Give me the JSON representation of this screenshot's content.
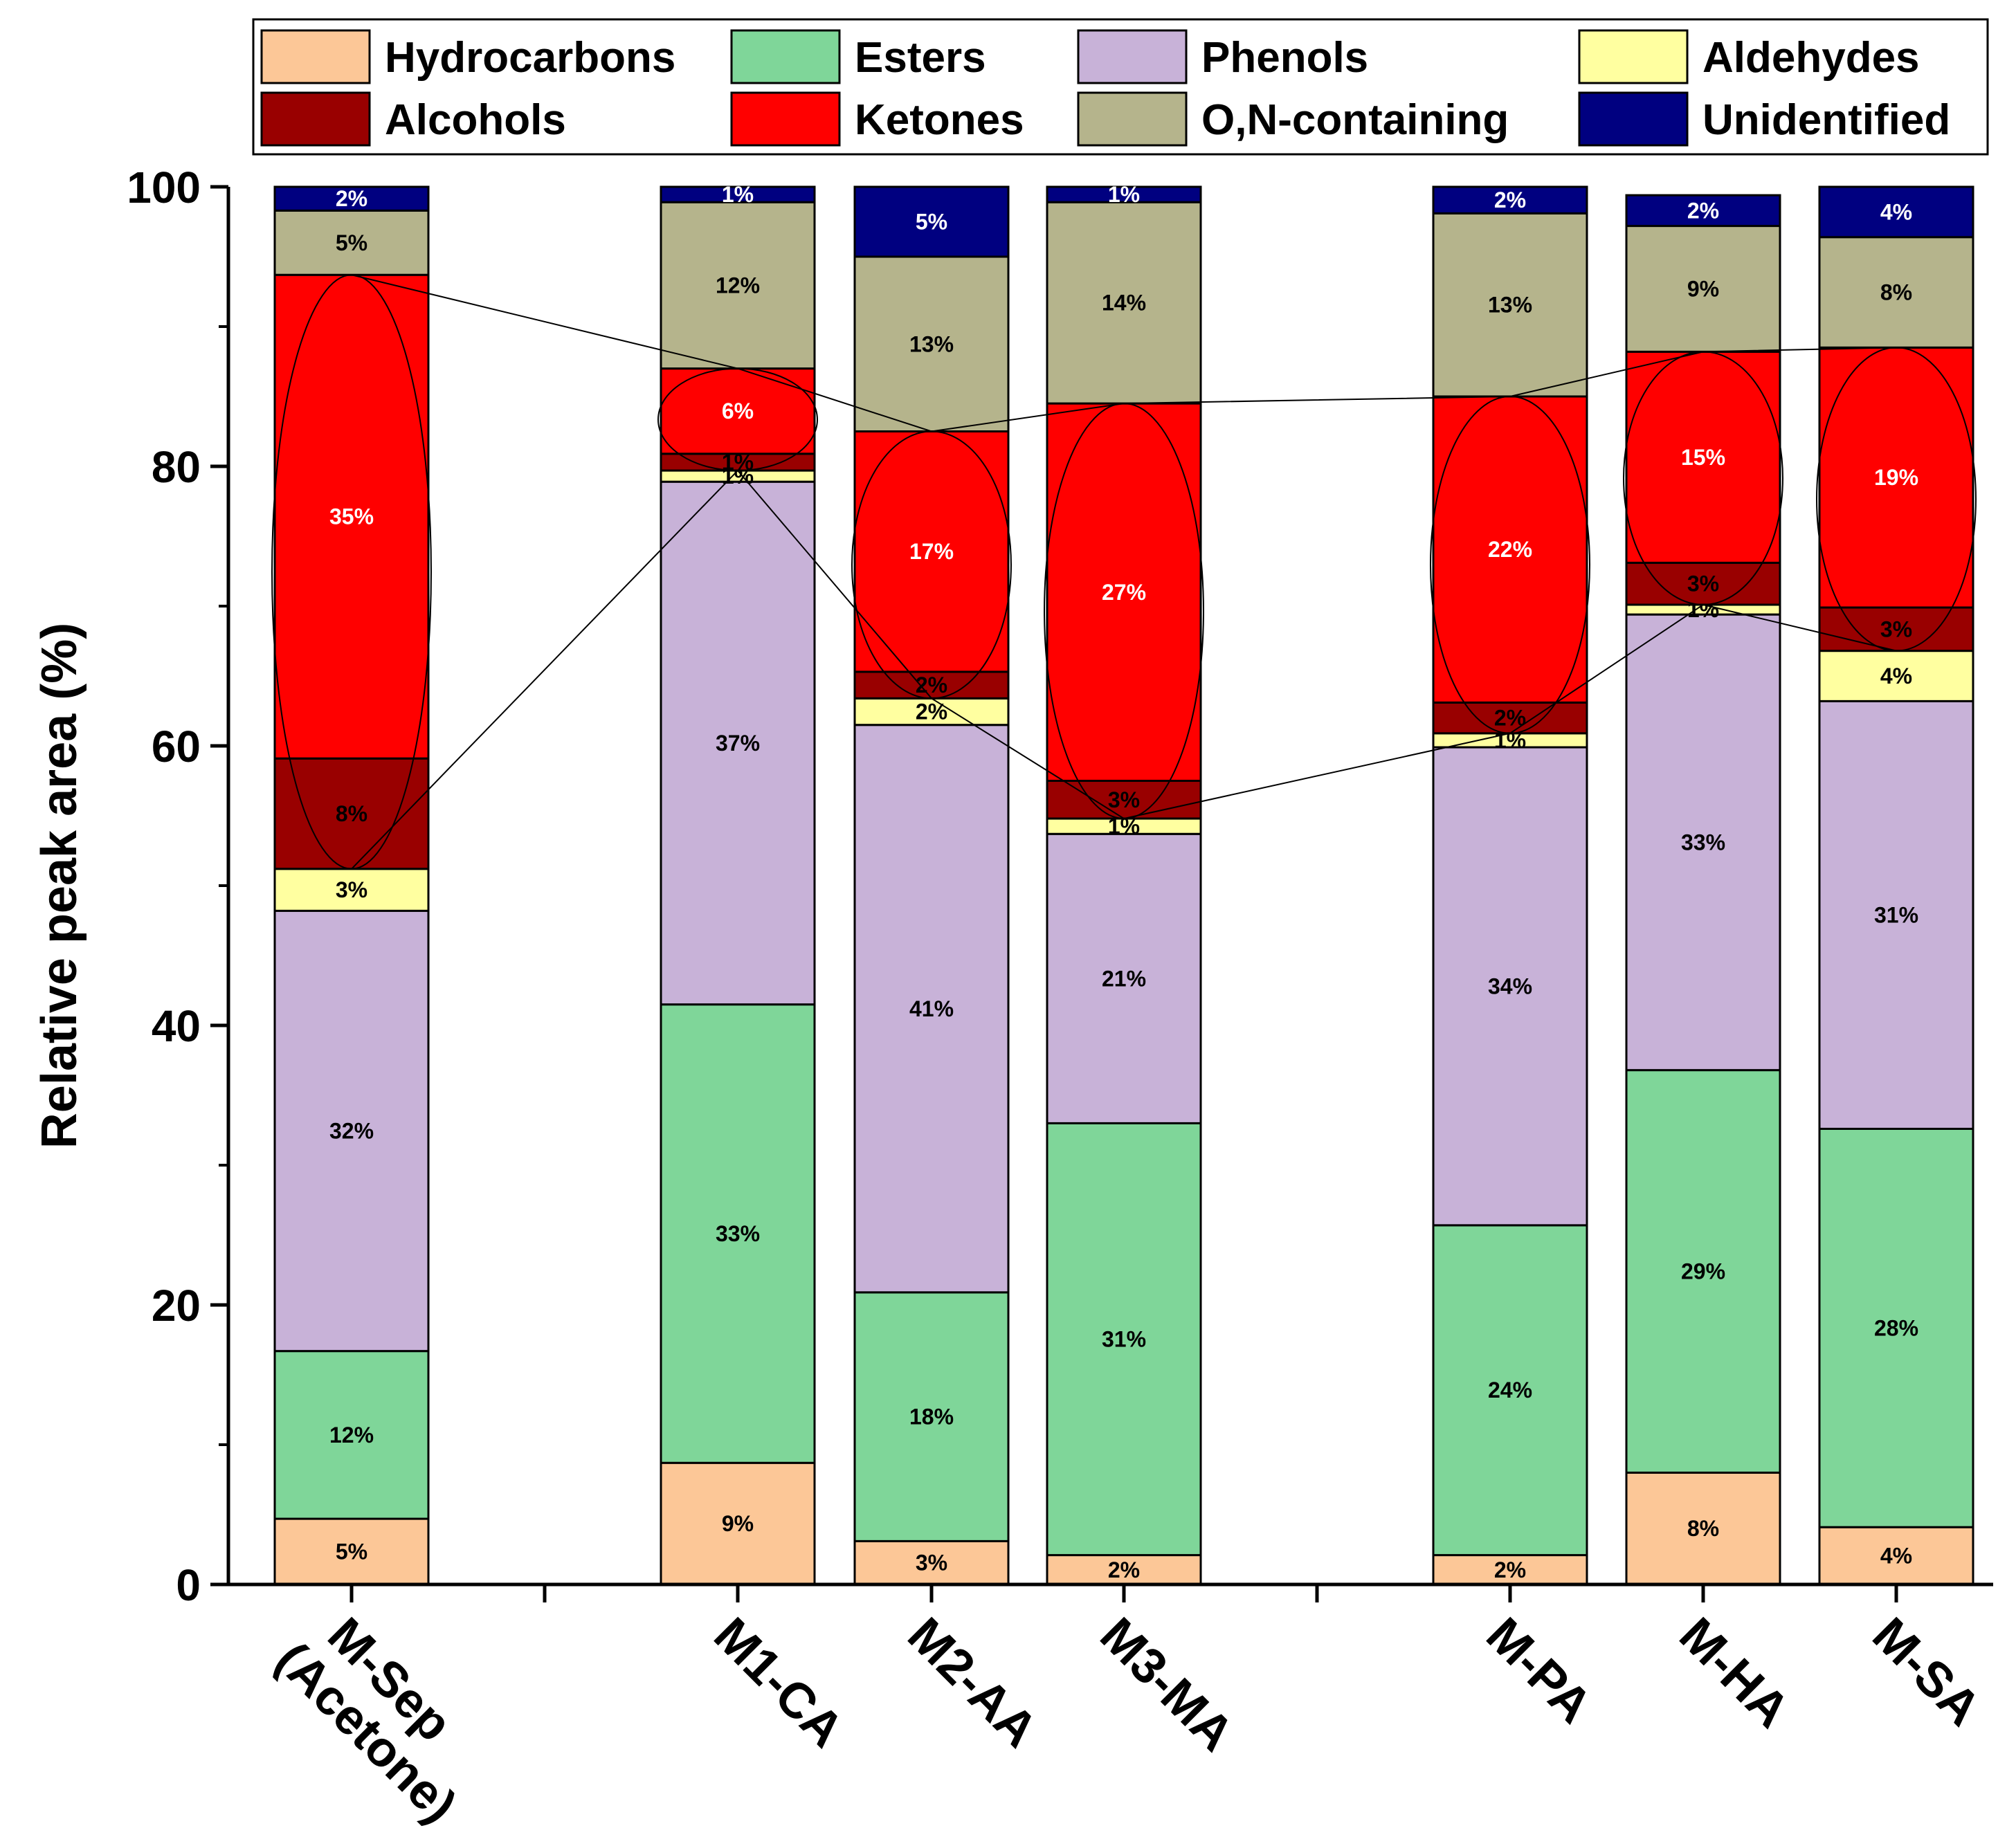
{
  "chart_data": {
    "type": "bar",
    "stacked": true,
    "ylabel": "Relative peak area (%)",
    "ylim": [
      0,
      100
    ],
    "yticks": [
      0,
      20,
      40,
      60,
      80,
      100
    ],
    "categories": [
      "M-Sep\n(Acetone)",
      "M1-CA",
      "M2-AA",
      "M3-MA",
      "M-PA",
      "M-HA",
      "M-SA"
    ],
    "legend_position": "top",
    "series": [
      {
        "name": "Hydrocarbons",
        "color": "#FCC797",
        "values": [
          4.7,
          8.7,
          3.1,
          2.1,
          2.1,
          8.0,
          4.1
        ],
        "labels": [
          "5%",
          "9%",
          "3%",
          "2%",
          "2%",
          "8%",
          "4%"
        ]
      },
      {
        "name": "Esters",
        "color": "#7FD699",
        "values": [
          12.0,
          32.8,
          17.8,
          30.9,
          23.6,
          28.8,
          28.5
        ],
        "labels": [
          "12%",
          "33%",
          "18%",
          "31%",
          "24%",
          "29%",
          "28%"
        ]
      },
      {
        "name": "Phenols",
        "color": "#C8B2D8",
        "values": [
          31.5,
          37.4,
          40.6,
          20.7,
          34.2,
          32.6,
          30.6
        ],
        "labels": [
          "32%",
          "37%",
          "41%",
          "21%",
          "34%",
          "33%",
          "31%"
        ]
      },
      {
        "name": "Aldehydes",
        "color": "#FFFFA0",
        "values": [
          3.0,
          0.8,
          1.9,
          1.1,
          1.0,
          0.7,
          3.6
        ],
        "labels": [
          "3%",
          "1%",
          "2%",
          "1%",
          "1%",
          "1%",
          "4%"
        ]
      },
      {
        "name": "Alcohols",
        "color": "#990000",
        "values": [
          7.9,
          1.2,
          1.9,
          2.7,
          2.2,
          3.0,
          3.1
        ],
        "labels": [
          "8%",
          "1%",
          "2%",
          "3%",
          "2%",
          "3%",
          "3%"
        ]
      },
      {
        "name": "Ketones",
        "color": "#FF0000",
        "values": [
          34.6,
          6.1,
          17.2,
          27.0,
          21.9,
          15.1,
          18.6
        ],
        "labels": [
          "35%",
          "6%",
          "17%",
          "27%",
          "22%",
          "15%",
          "19%"
        ]
      },
      {
        "name": "O,N-containing",
        "color": "#B5B48C",
        "values": [
          4.6,
          11.9,
          12.5,
          14.4,
          13.1,
          9.0,
          7.9
        ],
        "labels": [
          "5%",
          "12%",
          "13%",
          "14%",
          "13%",
          "9%",
          "8%"
        ]
      },
      {
        "name": "Unidentified",
        "color": "#000080",
        "values": [
          1.7,
          1.1,
          5.0,
          1.1,
          1.9,
          2.2,
          3.6
        ],
        "labels": [
          "2%",
          "1%",
          "5%",
          "1%",
          "2%",
          "2%",
          "4%"
        ]
      }
    ]
  }
}
